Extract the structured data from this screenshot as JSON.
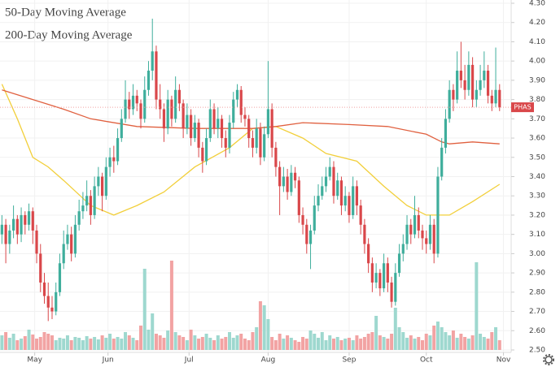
{
  "chart_data": {
    "type": "candlestick",
    "symbol": "PHAS",
    "ylim": [
      2.5,
      4.3
    ],
    "yticks": [
      {
        "value": 2.5,
        "label": "2.50"
      },
      {
        "value": 2.6,
        "label": "2.60"
      },
      {
        "value": 2.7,
        "label": "2.70"
      },
      {
        "value": 2.8,
        "label": "2.80"
      },
      {
        "value": 2.9,
        "label": "2.90"
      },
      {
        "value": 3.0,
        "label": "3.00"
      },
      {
        "value": 3.1,
        "label": "3.10"
      },
      {
        "value": 3.2,
        "label": "3.20"
      },
      {
        "value": 3.3,
        "label": "3.30"
      },
      {
        "value": 3.4,
        "label": "3.40"
      },
      {
        "value": 3.5,
        "label": "3.50"
      },
      {
        "value": 3.6,
        "label": "3.60"
      },
      {
        "value": 3.7,
        "label": "3.70"
      },
      {
        "value": 3.8,
        "label": "3.80"
      },
      {
        "value": 3.9,
        "label": "3.90"
      },
      {
        "value": 4.0,
        "label": "4.00"
      },
      {
        "value": 4.1,
        "label": "4.10"
      },
      {
        "value": 4.2,
        "label": "4.20"
      },
      {
        "value": 4.3,
        "label": "4.30"
      }
    ],
    "xlim": [
      -0.5,
      132
    ],
    "xticks": [
      {
        "value": 8.5,
        "label": "May"
      },
      {
        "value": 27.5,
        "label": "Jun"
      },
      {
        "value": 48.5,
        "label": "Jul"
      },
      {
        "value": 69,
        "label": "Aug"
      },
      {
        "value": 90,
        "label": "Sep"
      },
      {
        "value": 110,
        "label": "Oct"
      },
      {
        "value": 130,
        "label": "Nov"
      }
    ],
    "grid": true,
    "up_color": "#3fae9c",
    "down_color": "#d9474a",
    "up_volume_color": "#9ed8cf",
    "down_volume_color": "#f2a3a3",
    "candles": [
      [
        3.1,
        3.2,
        3.05,
        3.15
      ],
      [
        3.15,
        3.18,
        2.95,
        3.05
      ],
      [
        3.05,
        3.15,
        3.0,
        3.12
      ],
      [
        3.12,
        3.25,
        3.08,
        3.18
      ],
      [
        3.18,
        3.2,
        3.05,
        3.1
      ],
      [
        3.1,
        3.24,
        3.06,
        3.2
      ],
      [
        3.2,
        3.22,
        3.1,
        3.15
      ],
      [
        3.15,
        3.26,
        3.12,
        3.22
      ],
      [
        3.22,
        3.24,
        3.05,
        3.12
      ],
      [
        3.12,
        3.15,
        2.95,
        3.0
      ],
      [
        3.0,
        3.05,
        2.8,
        2.85
      ],
      [
        2.85,
        2.9,
        2.74,
        2.78
      ],
      [
        2.78,
        2.85,
        2.65,
        2.72
      ],
      [
        2.72,
        2.78,
        2.66,
        2.7
      ],
      [
        2.7,
        2.85,
        2.68,
        2.8
      ],
      [
        2.8,
        3.0,
        2.78,
        2.95
      ],
      [
        2.95,
        3.12,
        2.92,
        3.05
      ],
      [
        3.05,
        3.15,
        3.02,
        3.1
      ],
      [
        3.1,
        3.14,
        2.96,
        3.0
      ],
      [
        3.0,
        3.2,
        2.98,
        3.15
      ],
      [
        3.15,
        3.28,
        3.12,
        3.22
      ],
      [
        3.22,
        3.32,
        3.18,
        3.25
      ],
      [
        3.25,
        3.38,
        3.22,
        3.3
      ],
      [
        3.3,
        3.33,
        3.15,
        3.2
      ],
      [
        3.2,
        3.4,
        3.18,
        3.35
      ],
      [
        3.35,
        3.45,
        3.3,
        3.4
      ],
      [
        3.4,
        3.42,
        3.22,
        3.3
      ],
      [
        3.3,
        3.5,
        3.28,
        3.45
      ],
      [
        3.45,
        3.55,
        3.4,
        3.5
      ],
      [
        3.5,
        3.56,
        3.42,
        3.48
      ],
      [
        3.48,
        3.65,
        3.46,
        3.6
      ],
      [
        3.6,
        3.75,
        3.58,
        3.7
      ],
      [
        3.7,
        3.9,
        3.68,
        3.8
      ],
      [
        3.8,
        3.84,
        3.7,
        3.75
      ],
      [
        3.75,
        3.88,
        3.72,
        3.82
      ],
      [
        3.82,
        3.85,
        3.74,
        3.78
      ],
      [
        3.78,
        3.8,
        3.65,
        3.7
      ],
      [
        3.7,
        3.92,
        3.68,
        3.85
      ],
      [
        3.85,
        4.0,
        3.82,
        3.95
      ],
      [
        3.95,
        4.22,
        3.9,
        4.05
      ],
      [
        4.05,
        4.08,
        3.75,
        3.8
      ],
      [
        3.8,
        3.88,
        3.7,
        3.75
      ],
      [
        3.75,
        3.78,
        3.58,
        3.65
      ],
      [
        3.65,
        3.85,
        3.62,
        3.8
      ],
      [
        3.8,
        3.82,
        3.66,
        3.7
      ],
      [
        3.7,
        3.92,
        3.68,
        3.85
      ],
      [
        3.85,
        3.88,
        3.74,
        3.78
      ],
      [
        3.78,
        3.8,
        3.6,
        3.65
      ],
      [
        3.65,
        3.78,
        3.62,
        3.72
      ],
      [
        3.72,
        3.75,
        3.56,
        3.6
      ],
      [
        3.6,
        3.72,
        3.58,
        3.68
      ],
      [
        3.68,
        3.7,
        3.5,
        3.55
      ],
      [
        3.55,
        3.58,
        3.42,
        3.48
      ],
      [
        3.48,
        3.65,
        3.46,
        3.6
      ],
      [
        3.6,
        3.8,
        3.58,
        3.75
      ],
      [
        3.75,
        3.78,
        3.62,
        3.65
      ],
      [
        3.65,
        3.76,
        3.6,
        3.7
      ],
      [
        3.7,
        3.72,
        3.55,
        3.6
      ],
      [
        3.6,
        3.64,
        3.5,
        3.55
      ],
      [
        3.55,
        3.72,
        3.52,
        3.68
      ],
      [
        3.68,
        3.84,
        3.65,
        3.8
      ],
      [
        3.8,
        3.88,
        3.76,
        3.85
      ],
      [
        3.85,
        3.87,
        3.68,
        3.72
      ],
      [
        3.72,
        3.76,
        3.66,
        3.7
      ],
      [
        3.7,
        3.72,
        3.55,
        3.6
      ],
      [
        3.6,
        3.64,
        3.5,
        3.55
      ],
      [
        3.55,
        3.7,
        3.52,
        3.65
      ],
      [
        3.65,
        3.68,
        3.46,
        3.5
      ],
      [
        3.5,
        3.66,
        3.48,
        3.62
      ],
      [
        3.62,
        4.0,
        3.6,
        3.75
      ],
      [
        3.75,
        3.78,
        3.5,
        3.55
      ],
      [
        3.55,
        3.58,
        3.4,
        3.45
      ],
      [
        3.45,
        3.48,
        3.2,
        3.35
      ],
      [
        3.35,
        3.45,
        3.32,
        3.4
      ],
      [
        3.4,
        3.44,
        3.28,
        3.32
      ],
      [
        3.32,
        3.46,
        3.3,
        3.42
      ],
      [
        3.42,
        3.45,
        3.34,
        3.38
      ],
      [
        3.38,
        3.4,
        3.16,
        3.2
      ],
      [
        3.2,
        3.24,
        3.1,
        3.15
      ],
      [
        3.15,
        3.18,
        3.0,
        3.05
      ],
      [
        3.05,
        3.15,
        2.92,
        3.12
      ],
      [
        3.12,
        3.3,
        3.1,
        3.25
      ],
      [
        3.25,
        3.36,
        3.22,
        3.3
      ],
      [
        3.3,
        3.4,
        3.28,
        3.35
      ],
      [
        3.35,
        3.45,
        3.32,
        3.4
      ],
      [
        3.4,
        3.5,
        3.38,
        3.45
      ],
      [
        3.45,
        3.48,
        3.26,
        3.3
      ],
      [
        3.3,
        3.42,
        3.28,
        3.38
      ],
      [
        3.38,
        3.4,
        3.2,
        3.25
      ],
      [
        3.25,
        3.35,
        3.22,
        3.3
      ],
      [
        3.3,
        3.32,
        3.16,
        3.2
      ],
      [
        3.2,
        3.4,
        3.18,
        3.35
      ],
      [
        3.35,
        3.38,
        3.2,
        3.25
      ],
      [
        3.25,
        3.28,
        3.1,
        3.15
      ],
      [
        3.15,
        3.18,
        3.0,
        3.05
      ],
      [
        3.05,
        3.08,
        2.9,
        2.95
      ],
      [
        2.95,
        2.98,
        2.8,
        2.85
      ],
      [
        2.85,
        2.95,
        2.82,
        2.9
      ],
      [
        2.9,
        2.92,
        2.78,
        2.82
      ],
      [
        2.82,
        3.0,
        2.8,
        2.95
      ],
      [
        2.95,
        2.98,
        2.8,
        2.85
      ],
      [
        2.85,
        2.88,
        2.72,
        2.75
      ],
      [
        2.75,
        2.95,
        2.73,
        2.9
      ],
      [
        2.9,
        3.05,
        2.88,
        3.0
      ],
      [
        3.0,
        3.1,
        2.96,
        3.05
      ],
      [
        3.05,
        3.2,
        3.02,
        3.15
      ],
      [
        3.15,
        3.18,
        3.05,
        3.1
      ],
      [
        3.1,
        3.3,
        3.08,
        3.2
      ],
      [
        3.2,
        3.24,
        3.08,
        3.12
      ],
      [
        3.12,
        3.15,
        3.02,
        3.08
      ],
      [
        3.08,
        3.12,
        3.0,
        3.05
      ],
      [
        3.05,
        3.2,
        3.02,
        3.15
      ],
      [
        3.15,
        3.18,
        2.95,
        3.0
      ],
      [
        3.0,
        3.45,
        2.98,
        3.4
      ],
      [
        3.4,
        3.6,
        3.38,
        3.55
      ],
      [
        3.55,
        3.75,
        3.52,
        3.7
      ],
      [
        3.7,
        3.9,
        3.68,
        3.85
      ],
      [
        3.85,
        3.88,
        3.74,
        3.8
      ],
      [
        3.8,
        4.05,
        3.78,
        3.95
      ],
      [
        3.95,
        4.1,
        3.86,
        3.9
      ],
      [
        3.9,
        3.98,
        3.8,
        3.85
      ],
      [
        3.85,
        4.05,
        3.82,
        3.98
      ],
      [
        3.98,
        4.02,
        3.76,
        3.8
      ],
      [
        3.8,
        3.9,
        3.76,
        3.85
      ],
      [
        3.85,
        3.98,
        3.82,
        3.9
      ],
      [
        3.9,
        4.05,
        3.86,
        3.95
      ],
      [
        3.95,
        3.98,
        3.78,
        3.82
      ],
      [
        3.82,
        3.85,
        3.74,
        3.78
      ],
      [
        3.78,
        4.07,
        3.76,
        3.85
      ],
      [
        3.85,
        3.88,
        3.74,
        3.76
      ]
    ],
    "volumes": [
      18,
      22,
      15,
      20,
      12,
      14,
      17,
      25,
      19,
      14,
      16,
      22,
      20,
      18,
      12,
      15,
      14,
      18,
      12,
      16,
      15,
      12,
      17,
      14,
      16,
      13,
      18,
      15,
      20,
      14,
      16,
      14,
      22,
      18,
      15,
      12,
      30,
      100,
      25,
      45,
      20,
      18,
      15,
      24,
      110,
      22,
      18,
      16,
      12,
      25,
      18,
      14,
      16,
      20,
      15,
      12,
      18,
      14,
      16,
      22,
      15,
      18,
      20,
      14,
      12,
      22,
      28,
      60,
      55,
      38,
      16,
      12,
      20,
      14,
      18,
      15,
      12,
      10,
      16,
      14,
      24,
      20,
      15,
      22,
      12,
      18,
      14,
      16,
      12,
      14,
      15,
      12,
      18,
      14,
      16,
      20,
      22,
      42,
      18,
      16,
      14,
      20,
      52,
      28,
      22,
      15,
      18,
      14,
      16,
      12,
      20,
      18,
      30,
      35,
      28,
      22,
      18,
      24,
      15,
      20,
      16,
      14,
      18,
      108,
      20,
      16,
      14,
      22,
      28,
      12
    ],
    "series": [
      {
        "name": "50-Day Moving Average",
        "color": "#f2cf3a",
        "x": [
          0,
          4,
          8,
          12,
          16,
          23,
          29,
          35,
          42,
          50,
          59,
          65,
          71,
          78,
          84,
          92,
          99,
          105,
          110,
          116,
          122,
          129
        ],
        "values": [
          3.88,
          3.7,
          3.5,
          3.45,
          3.38,
          3.25,
          3.2,
          3.25,
          3.32,
          3.45,
          3.55,
          3.65,
          3.66,
          3.6,
          3.52,
          3.48,
          3.35,
          3.25,
          3.2,
          3.2,
          3.27,
          3.36
        ]
      },
      {
        "name": "200-Day Moving Average",
        "color": "#e0603f",
        "x": [
          0,
          8,
          16,
          23,
          35,
          50,
          65,
          71,
          78,
          90,
          100,
          110,
          114,
          116,
          122,
          129
        ],
        "values": [
          3.85,
          3.8,
          3.75,
          3.7,
          3.66,
          3.65,
          3.65,
          3.66,
          3.68,
          3.67,
          3.66,
          3.62,
          3.58,
          3.57,
          3.58,
          3.57
        ]
      }
    ]
  }
}
